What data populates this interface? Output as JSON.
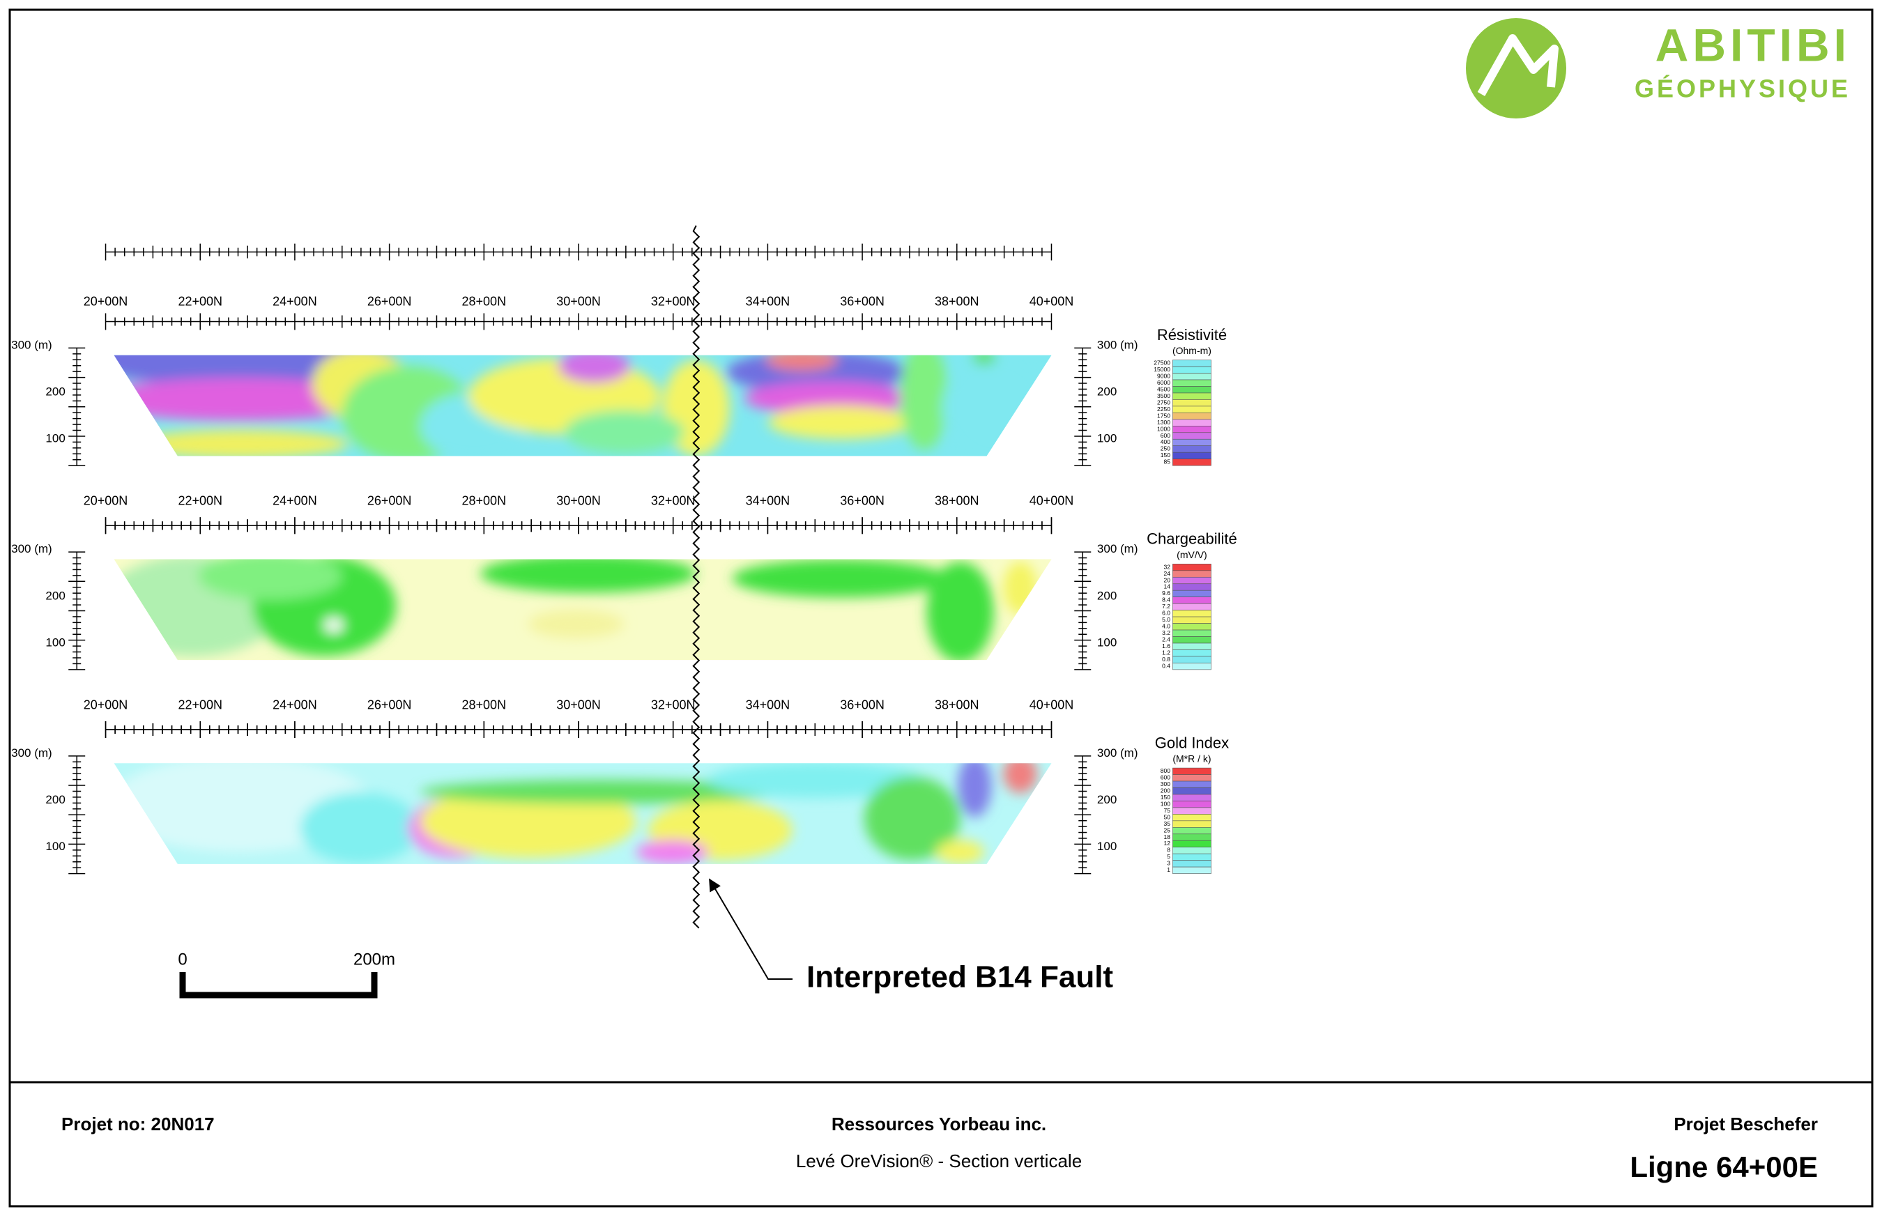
{
  "logo": {
    "name": "ABITIBI",
    "sub": "GÉOPHYSIQUE"
  },
  "station_labels": [
    "20+00N",
    "22+00N",
    "24+00N",
    "26+00N",
    "28+00N",
    "30+00N",
    "32+00N",
    "34+00N",
    "36+00N",
    "38+00N",
    "40+00N"
  ],
  "depth_labels": [
    "300 (m)",
    "200",
    "100"
  ],
  "panels": [
    {
      "title": "Résistivité",
      "unit": "(Ohm-m)",
      "scale_labels": [
        "27500",
        "15000",
        "9000",
        "6000",
        "4500",
        "3500",
        "2750",
        "2250",
        "1750",
        "1300",
        "1000",
        "600",
        "400",
        "250",
        "150",
        "85"
      ]
    },
    {
      "title": "Chargeabilité",
      "unit": "(mV/V)",
      "scale_labels": [
        "32",
        "24",
        "20",
        "14",
        "9.6",
        "8.4",
        "7.2",
        "6.0",
        "5.0",
        "4.0",
        "3.2",
        "2.4",
        "1.6",
        "1.2",
        "0.8",
        "0.4"
      ]
    },
    {
      "title": "Gold Index",
      "unit": "(M*R / k)",
      "scale_labels": [
        "800",
        "600",
        "300",
        "200",
        "150",
        "100",
        "75",
        "50",
        "35",
        "25",
        "18",
        "12",
        "8",
        "5",
        "3",
        "1"
      ]
    }
  ],
  "scale_bar": {
    "start": "0",
    "end": "200m"
  },
  "annotation": "Interpreted B14 Fault",
  "footer": {
    "project_no": "Projet no: 20N017",
    "client": "Ressources Yorbeau inc.",
    "survey": "Levé OreVision® - Section verticale",
    "project": "Projet Beschefer",
    "line": "Ligne 64+00E"
  }
}
